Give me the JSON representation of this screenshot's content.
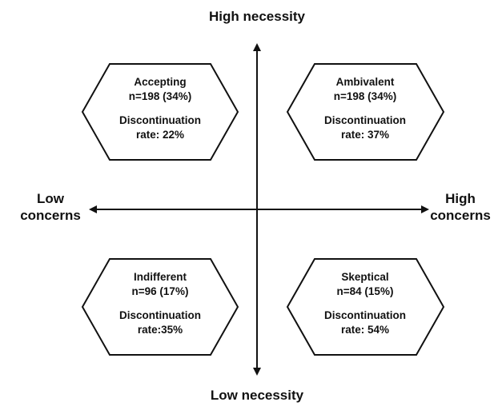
{
  "axes": {
    "top": "High necessity",
    "bottom": "Low necessity",
    "left_line1": "Low",
    "left_line2": "concerns",
    "right_line1": "High",
    "right_line2": "concerns"
  },
  "quadrants": [
    {
      "name": "Accepting",
      "n": "n=198 (34%)",
      "dl1": "Discontinuation",
      "dl2": "rate: 22%"
    },
    {
      "name": "Ambivalent",
      "n": "n=198 (34%)",
      "dl1": "Discontinuation",
      "dl2": "rate: 37%"
    },
    {
      "name": "Indifferent",
      "n": "n=96 (17%)",
      "dl1": "Discontinuation",
      "dl2": "rate:35%"
    },
    {
      "name": "Skeptical",
      "n": "n=84 (15%)",
      "dl1": "Discontinuation",
      "dl2": "rate: 54%"
    }
  ]
}
